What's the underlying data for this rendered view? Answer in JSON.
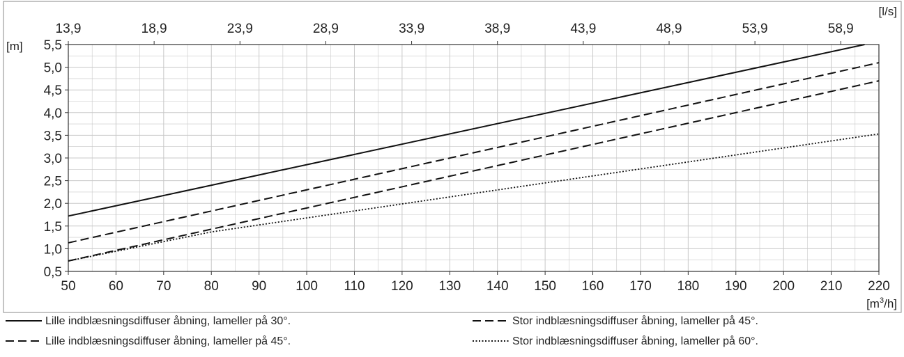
{
  "chart_data": {
    "type": "line",
    "x_unit_label": "[m³/h]",
    "x_unit_main": "[m",
    "x_unit_sup": "3",
    "x_unit_tail": "/h]",
    "y_unit_label": "[m]",
    "top_unit_label": "[l/s]",
    "xlim": [
      50,
      220
    ],
    "ylim": [
      0.5,
      5.5
    ],
    "x_ticks": [
      50,
      60,
      70,
      80,
      90,
      100,
      110,
      120,
      130,
      140,
      150,
      160,
      170,
      180,
      190,
      200,
      210,
      220
    ],
    "x_tick_labels": [
      "50",
      "60",
      "70",
      "80",
      "90",
      "100",
      "110",
      "120",
      "130",
      "140",
      "150",
      "160",
      "170",
      "180",
      "190",
      "200",
      "210",
      "220"
    ],
    "y_ticks": [
      0.5,
      1.0,
      1.5,
      2.0,
      2.5,
      3.0,
      3.5,
      4.0,
      4.5,
      5.0,
      5.5
    ],
    "y_tick_labels": [
      "0,5",
      "1,0",
      "1,5",
      "2,0",
      "2,5",
      "3,0",
      "3,5",
      "4,0",
      "4,5",
      "5,0",
      "5,5"
    ],
    "top_ticks": [
      50,
      68,
      86,
      104,
      122,
      140,
      158,
      176,
      194,
      212
    ],
    "top_tick_labels": [
      "13,9",
      "18,9",
      "23,9",
      "28,9",
      "33,9",
      "38,9",
      "43,9",
      "48,9",
      "53,9",
      "58,9"
    ],
    "grid": true,
    "series": [
      {
        "name": "Lille indblæsningsdiffuser åbning, lameller på 30°.",
        "style": "solid",
        "x": [
          50,
          217
        ],
        "y": [
          1.72,
          5.5
        ]
      },
      {
        "name": "Lille indblæsningsdiffuser åbning, lameller på 45°.",
        "style": "dashed",
        "x": [
          50,
          220
        ],
        "y": [
          0.73,
          4.7
        ]
      },
      {
        "name": "Stor indblæsningsdiffuser åbning, lameller på 45°.",
        "style": "dashed",
        "x": [
          50,
          220
        ],
        "y": [
          1.13,
          5.1
        ]
      },
      {
        "name": "Stor indblæsningsdiffuser åbning, lameller på 60°.",
        "style": "dotted",
        "x": [
          50,
          80,
          220
        ],
        "y": [
          0.73,
          1.37,
          3.53
        ]
      }
    ],
    "legend_placement": "bottom"
  },
  "colors": {
    "line": "#111111",
    "grid": "#c8c8c8",
    "axis": "#333333",
    "frame": "#888888"
  }
}
